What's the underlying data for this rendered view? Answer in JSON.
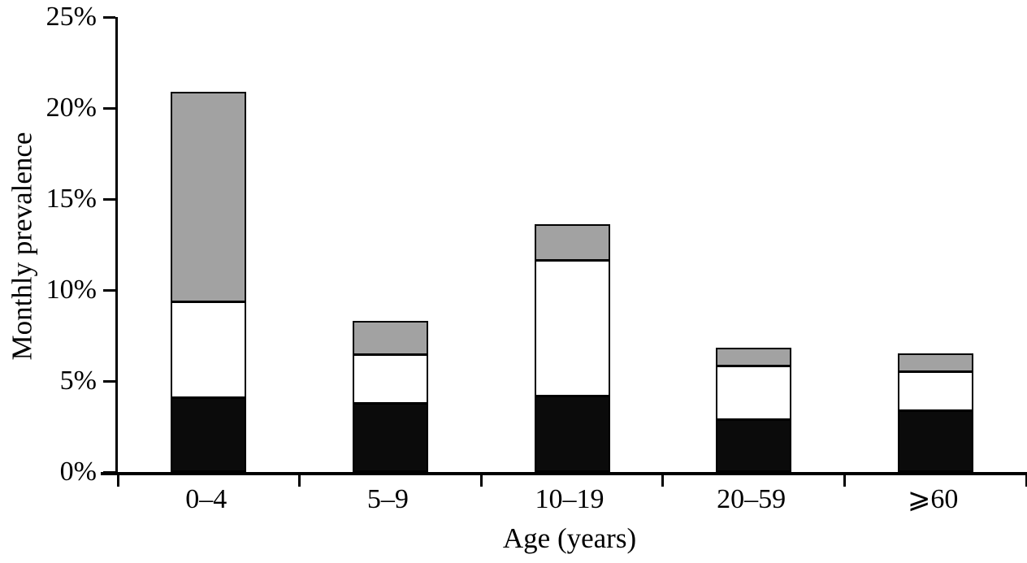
{
  "chart_data": {
    "type": "bar",
    "stacked": true,
    "title": "",
    "xlabel": "Age (years)",
    "ylabel": "Monthly prevalence",
    "categories": [
      "0–4",
      "5–9",
      "10–19",
      "20–59",
      "⩾60"
    ],
    "series": [
      {
        "name": "black",
        "color": "#0b0b0b",
        "values": [
          4.1,
          3.8,
          4.2,
          2.9,
          3.4
        ]
      },
      {
        "name": "white",
        "color": "#ffffff",
        "values": [
          5.3,
          2.7,
          7.5,
          3.0,
          2.2
        ]
      },
      {
        "name": "grey",
        "color": "#a2a2a2",
        "values": [
          11.6,
          1.9,
          2.0,
          1.0,
          1.0
        ]
      }
    ],
    "stack_totals": [
      21.0,
      8.4,
      13.7,
      6.9,
      6.6
    ],
    "y_ticks": [
      "0%",
      "5%",
      "10%",
      "15%",
      "20%",
      "25%"
    ],
    "y_tick_values": [
      0,
      5,
      10,
      15,
      20,
      25
    ],
    "ylim": [
      0,
      25
    ],
    "xlim_cells": 5,
    "grid": false,
    "legend": "none",
    "axis_color": "#000000",
    "background_color": "#ffffff"
  }
}
